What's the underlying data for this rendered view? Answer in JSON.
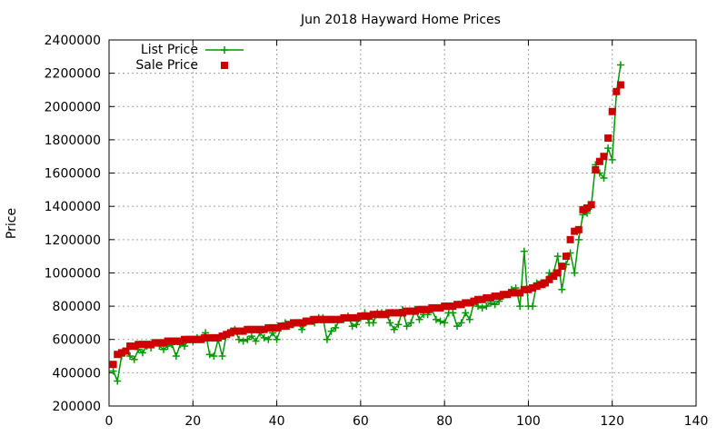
{
  "chart_data": {
    "type": "line",
    "title": "Jun 2018 Hayward Home Prices",
    "xlabel": "",
    "ylabel": "Price",
    "xlim": [
      0,
      140
    ],
    "ylim": [
      200000,
      2400000
    ],
    "xticks": [
      0,
      20,
      40,
      60,
      80,
      100,
      120,
      140
    ],
    "yticks": [
      200000,
      400000,
      600000,
      800000,
      1000000,
      1200000,
      1400000,
      1600000,
      1800000,
      2000000,
      2200000,
      2400000
    ],
    "grid": true,
    "legend_position": "top-left",
    "series": [
      {
        "name": "List Price",
        "style": "line+plus",
        "color": "#009900",
        "x": [
          1,
          2,
          3,
          4,
          5,
          6,
          7,
          8,
          9,
          10,
          11,
          12,
          13,
          14,
          15,
          16,
          17,
          18,
          19,
          20,
          21,
          22,
          23,
          24,
          25,
          26,
          27,
          28,
          29,
          30,
          31,
          32,
          33,
          34,
          35,
          36,
          37,
          38,
          39,
          40,
          41,
          42,
          43,
          44,
          45,
          46,
          47,
          48,
          49,
          50,
          51,
          52,
          53,
          54,
          55,
          56,
          57,
          58,
          59,
          60,
          61,
          62,
          63,
          64,
          65,
          66,
          67,
          68,
          69,
          70,
          71,
          72,
          73,
          74,
          75,
          76,
          77,
          78,
          79,
          80,
          81,
          82,
          83,
          84,
          85,
          86,
          87,
          88,
          89,
          90,
          91,
          92,
          93,
          94,
          95,
          96,
          97,
          98,
          99,
          100,
          101,
          102,
          103,
          104,
          105,
          106,
          107,
          108,
          109,
          110,
          111,
          112,
          113,
          114,
          115,
          116,
          117,
          118,
          119,
          120,
          121,
          122,
          123
        ],
        "values": [
          410000,
          350000,
          500000,
          530000,
          500000,
          480000,
          540000,
          520000,
          560000,
          550000,
          580000,
          560000,
          540000,
          560000,
          570000,
          500000,
          570000,
          560000,
          600000,
          590000,
          610000,
          610000,
          640000,
          510000,
          500000,
          600000,
          500000,
          630000,
          650000,
          660000,
          600000,
          590000,
          600000,
          620000,
          590000,
          640000,
          610000,
          600000,
          640000,
          600000,
          670000,
          700000,
          680000,
          690000,
          700000,
          660000,
          700000,
          720000,
          700000,
          730000,
          730000,
          600000,
          650000,
          670000,
          720000,
          720000,
          740000,
          680000,
          690000,
          730000,
          760000,
          700000,
          700000,
          760000,
          760000,
          760000,
          700000,
          660000,
          690000,
          780000,
          680000,
          700000,
          780000,
          720000,
          750000,
          750000,
          780000,
          720000,
          710000,
          700000,
          760000,
          760000,
          680000,
          700000,
          760000,
          720000,
          820000,
          800000,
          790000,
          800000,
          820000,
          810000,
          830000,
          860000,
          870000,
          900000,
          910000,
          800000,
          1130000,
          800000,
          800000,
          940000,
          940000,
          930000,
          1000000,
          1000000,
          1100000,
          900000,
          1050000,
          1120000,
          1000000,
          1200000,
          1350000,
          1360000,
          1400000,
          1650000,
          1600000,
          1570000,
          1750000,
          1680000,
          2080000,
          2250000,
          null
        ]
      },
      {
        "name": "Sale Price",
        "style": "square",
        "color": "#cc0000",
        "x": [
          1,
          2,
          3,
          4,
          5,
          6,
          7,
          8,
          9,
          10,
          11,
          12,
          13,
          14,
          15,
          16,
          17,
          18,
          19,
          20,
          21,
          22,
          23,
          24,
          25,
          26,
          27,
          28,
          29,
          30,
          31,
          32,
          33,
          34,
          35,
          36,
          37,
          38,
          39,
          40,
          41,
          42,
          43,
          44,
          45,
          46,
          47,
          48,
          49,
          50,
          51,
          52,
          53,
          54,
          55,
          56,
          57,
          58,
          59,
          60,
          61,
          62,
          63,
          64,
          65,
          66,
          67,
          68,
          69,
          70,
          71,
          72,
          73,
          74,
          75,
          76,
          77,
          78,
          79,
          80,
          81,
          82,
          83,
          84,
          85,
          86,
          87,
          88,
          89,
          90,
          91,
          92,
          93,
          94,
          95,
          96,
          97,
          98,
          99,
          100,
          101,
          102,
          103,
          104,
          105,
          106,
          107,
          108,
          109,
          110,
          111,
          112,
          113,
          114,
          115,
          116,
          117,
          118,
          119,
          120,
          121,
          122,
          123
        ],
        "values": [
          450000,
          510000,
          520000,
          530000,
          560000,
          560000,
          570000,
          570000,
          570000,
          570000,
          580000,
          580000,
          580000,
          590000,
          590000,
          590000,
          590000,
          600000,
          600000,
          600000,
          600000,
          600000,
          610000,
          610000,
          610000,
          610000,
          620000,
          630000,
          640000,
          650000,
          650000,
          650000,
          660000,
          660000,
          660000,
          660000,
          660000,
          670000,
          670000,
          670000,
          680000,
          680000,
          690000,
          700000,
          700000,
          700000,
          710000,
          710000,
          720000,
          720000,
          720000,
          720000,
          720000,
          720000,
          720000,
          730000,
          730000,
          730000,
          730000,
          740000,
          740000,
          740000,
          750000,
          750000,
          750000,
          750000,
          760000,
          760000,
          760000,
          760000,
          770000,
          770000,
          770000,
          780000,
          780000,
          780000,
          790000,
          790000,
          790000,
          800000,
          800000,
          800000,
          810000,
          810000,
          820000,
          820000,
          830000,
          840000,
          840000,
          850000,
          850000,
          860000,
          860000,
          870000,
          870000,
          880000,
          880000,
          880000,
          900000,
          900000,
          910000,
          920000,
          930000,
          940000,
          960000,
          980000,
          1000000,
          1040000,
          1100000,
          1200000,
          1250000,
          1260000,
          1380000,
          1390000,
          1410000,
          1620000,
          1670000,
          1700000,
          1810000,
          1970000,
          2090000,
          2130000,
          null
        ]
      }
    ]
  }
}
